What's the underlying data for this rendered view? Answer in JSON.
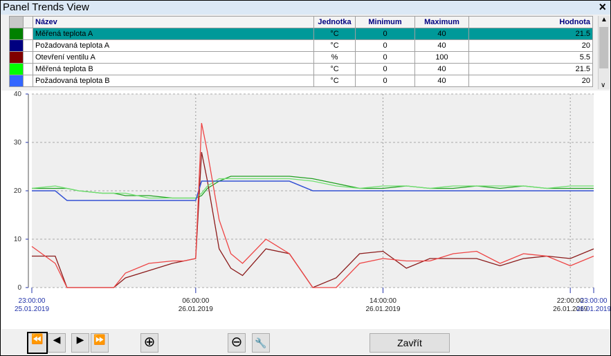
{
  "window": {
    "title": "Panel Trends View",
    "close": "×"
  },
  "table": {
    "headers": [
      "Název",
      "Jednotka",
      "Minimum",
      "Maximum",
      "Hodnota"
    ],
    "rows": [
      {
        "color": "#008000",
        "cells": [
          "Měřená teplota A",
          "°C",
          "0",
          "40",
          "21.5"
        ]
      },
      {
        "color": "#000080",
        "cells": [
          "Požadovaná teplota A",
          "°C",
          "0",
          "40",
          "20"
        ]
      },
      {
        "color": "#800000",
        "cells": [
          "Otevření ventilu A",
          "%",
          "0",
          "100",
          "5.5"
        ]
      },
      {
        "color": "#00ff00",
        "cells": [
          "Měřená teplota B",
          "°C",
          "0",
          "40",
          "21.5"
        ]
      },
      {
        "color": "#3366ff",
        "cells": [
          "Požadovaná teplota B",
          "°C",
          "0",
          "40",
          "20"
        ]
      }
    ]
  },
  "chart_data": {
    "type": "line",
    "x": [
      "25.01.2019 23:00:00",
      "26.01.2019 00:00:00",
      "26.01.2019 00:30:00",
      "26.01.2019 01:00:00",
      "26.01.2019 02:00:00",
      "26.01.2019 02:30:00",
      "26.01.2019 03:00:00",
      "26.01.2019 04:00:00",
      "26.01.2019 05:00:00",
      "26.01.2019 05:30:00",
      "26.01.2019 06:00:00",
      "26.01.2019 06:15:00",
      "26.01.2019 06:30:00",
      "26.01.2019 07:00:00",
      "26.01.2019 07:30:00",
      "26.01.2019 08:00:00",
      "26.01.2019 09:00:00",
      "26.01.2019 10:00:00",
      "26.01.2019 11:00:00",
      "26.01.2019 12:00:00",
      "26.01.2019 13:00:00",
      "26.01.2019 14:00:00",
      "26.01.2019 15:00:00",
      "26.01.2019 16:00:00",
      "26.01.2019 17:00:00",
      "26.01.2019 18:00:00",
      "26.01.2019 19:00:00",
      "26.01.2019 20:00:00",
      "26.01.2019 21:00:00",
      "26.01.2019 22:00:00",
      "26.01.2019 23:00:00"
    ],
    "series": [
      {
        "color": "#20a020",
        "values": [
          20.5,
          20.5,
          20.5,
          20,
          19.5,
          19.5,
          19,
          19,
          18.5,
          18.5,
          18.5,
          19,
          20.5,
          22,
          23,
          23,
          23,
          23,
          22.5,
          21.5,
          20.5,
          20.5,
          21,
          20.5,
          20.5,
          21,
          20.5,
          21,
          20.5,
          20.5,
          20.5
        ]
      },
      {
        "color": "#000080",
        "values": [
          20,
          20,
          18,
          18,
          18,
          18,
          18,
          18,
          18,
          18,
          18,
          22,
          22,
          22,
          22,
          22,
          22,
          22,
          20,
          20,
          20,
          20,
          20,
          20,
          20,
          20,
          20,
          20,
          20,
          20,
          20
        ]
      },
      {
        "color": "#8b1a1a",
        "values": [
          6.5,
          6.5,
          0,
          0,
          0,
          0,
          2,
          3.5,
          5,
          5.5,
          6,
          28,
          22,
          8,
          4,
          2.5,
          8,
          7,
          0,
          2,
          7,
          7.5,
          4,
          6,
          6,
          6,
          4.5,
          6,
          6.5,
          6,
          8
        ]
      },
      {
        "color": "#70e070",
        "values": [
          20.5,
          21,
          20.5,
          20,
          19.5,
          19.5,
          19.5,
          18.5,
          18.5,
          18.5,
          18.5,
          19.5,
          21,
          22.5,
          22.5,
          22.5,
          22.5,
          22.5,
          22,
          21,
          20.5,
          21,
          21,
          20.5,
          21,
          21,
          21,
          21,
          20.5,
          21,
          21
        ]
      },
      {
        "color": "#3355dd",
        "values": [
          20,
          20,
          18,
          18,
          18,
          18,
          18,
          18,
          18,
          18,
          18,
          22,
          22,
          22,
          22,
          22,
          22,
          22,
          20,
          20,
          20,
          20,
          20,
          20,
          20,
          20,
          20,
          20,
          20,
          20,
          20
        ]
      },
      {
        "color": "#ee4444",
        "values": [
          8.5,
          5,
          0,
          0,
          0,
          0,
          3,
          5,
          5.5,
          5.5,
          6,
          34,
          28,
          14,
          7,
          5,
          10,
          7,
          0,
          0,
          5,
          6,
          5.5,
          5.5,
          7,
          7.5,
          5,
          7,
          6.5,
          4.5,
          6.5
        ]
      }
    ],
    "xlim": [
      "25.01.2019 23:00:00",
      "26.01.2019 23:00:00"
    ],
    "xticks": [
      {
        "value": "25.01.2019 23:00:00",
        "label": [
          "23:00:00",
          "25.01.2019"
        ]
      },
      {
        "value": "26.01.2019 06:00:00",
        "label": [
          "06:00:00",
          "26.01.2019"
        ]
      },
      {
        "value": "26.01.2019 14:00:00",
        "label": [
          "14:00:00",
          "26.01.2019"
        ]
      },
      {
        "value": "26.01.2019 22:00:00",
        "label": [
          "22:00:00",
          "26.01.2019"
        ]
      },
      {
        "value": "26.01.2019 23:00:00",
        "label": [
          "23:00:00",
          "26.01.2019"
        ]
      }
    ],
    "ylim": [
      0,
      40
    ],
    "yticks": [
      0,
      10,
      20,
      30,
      40
    ],
    "grid": true
  },
  "buttons": {
    "close": "Zavřít"
  }
}
